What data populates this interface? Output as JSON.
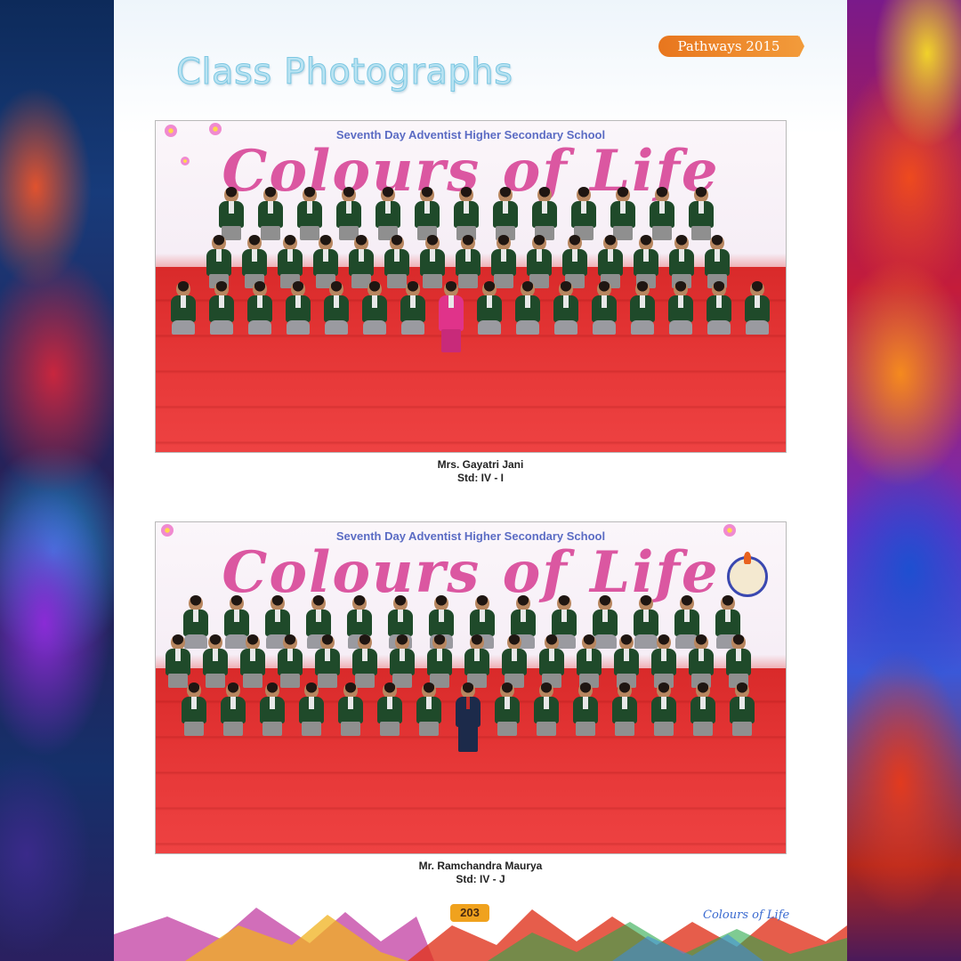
{
  "header": {
    "tab_label": "Pathways 2015",
    "heading": "Class Photographs"
  },
  "photos": [
    {
      "school_name": "Seventh Day Adventist Higher Secondary School",
      "backdrop_title": "Colours of Life",
      "teacher": "Mrs. Gayatri Jani",
      "class": "Std: IV - I"
    },
    {
      "school_name": "Seventh Day Adventist Higher Secondary School",
      "backdrop_title": "Colours of Life",
      "teacher": "Mr. Ramchandra Maurya",
      "class": "Std: IV - J"
    }
  ],
  "footer": {
    "page_number": "203",
    "brand": "Colours of Life"
  },
  "colors": {
    "tab": "#e8761e",
    "heading": "#b9e3f2",
    "floor": "#e22d2d",
    "blazer": "#1f4a2a"
  }
}
